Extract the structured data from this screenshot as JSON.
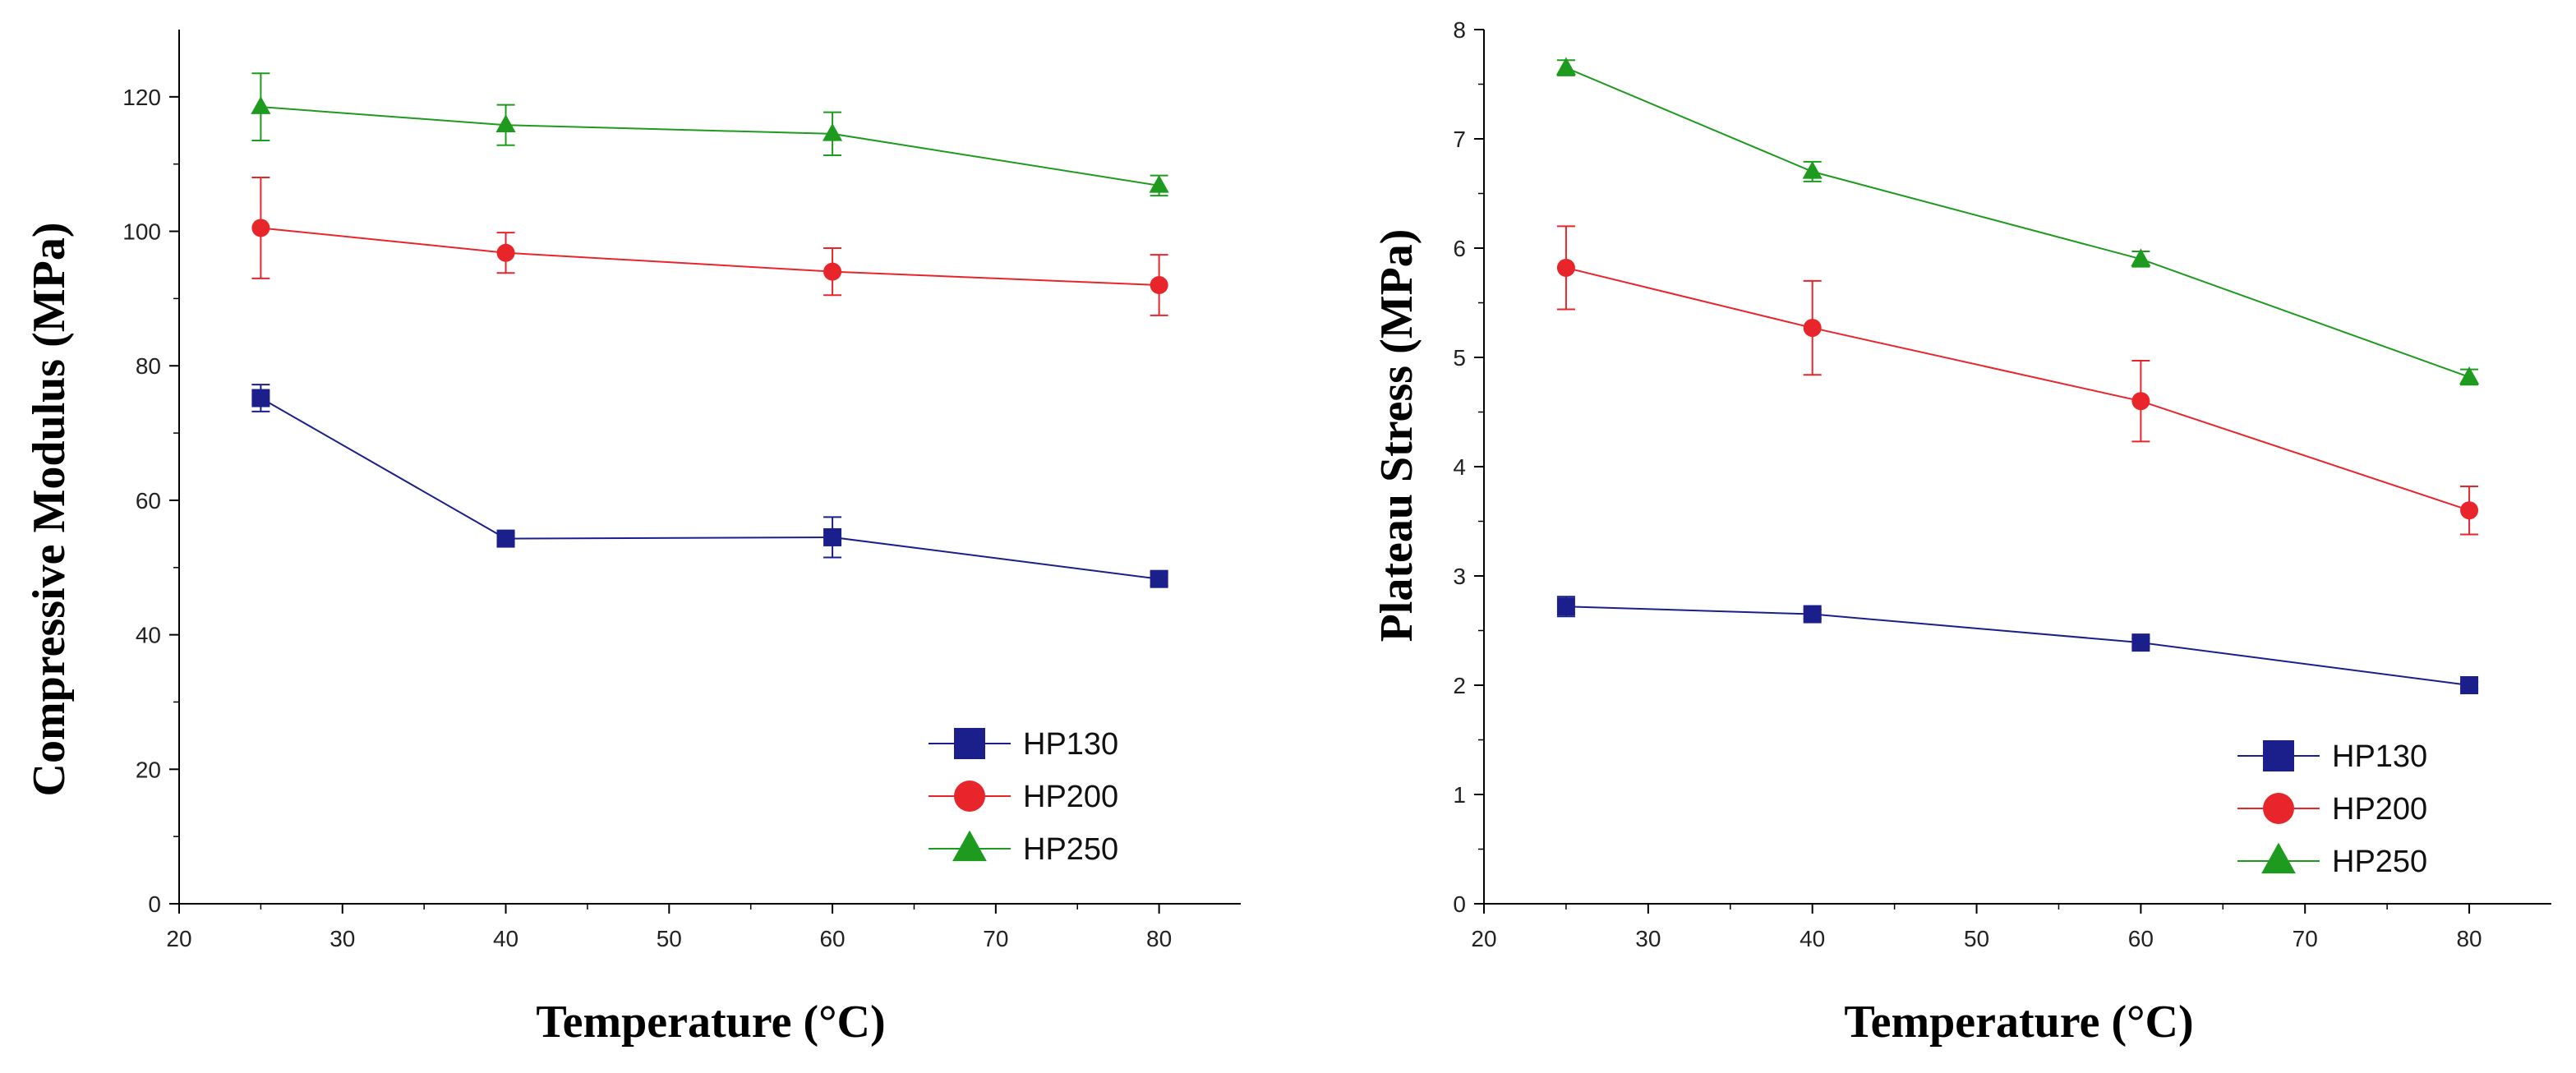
{
  "chart_data": [
    {
      "type": "line",
      "xlabel": "Temperature (°C)",
      "ylabel": "Compressive Modulus (MPa)",
      "xlim": [
        20,
        85
      ],
      "ylim": [
        0,
        130
      ],
      "xticks": [
        20,
        30,
        40,
        50,
        60,
        70,
        80
      ],
      "yticks": [
        0,
        20,
        40,
        60,
        80,
        100,
        120
      ],
      "x": [
        25,
        40,
        60,
        80
      ],
      "legend_position": "bottom-right",
      "series": [
        {
          "name": "HP130",
          "marker": "square",
          "color": "#1a1f8c",
          "values": [
            75.2,
            54.3,
            54.5,
            48.3
          ],
          "errors": [
            2.0,
            0.8,
            3.0,
            1.0
          ]
        },
        {
          "name": "HP200",
          "marker": "circle",
          "color": "#e8252b",
          "values": [
            100.5,
            96.8,
            94.0,
            92.0
          ],
          "errors": [
            7.5,
            3.0,
            3.5,
            4.5
          ]
        },
        {
          "name": "HP250",
          "marker": "triangle",
          "color": "#1e9b1e",
          "values": [
            118.5,
            115.8,
            114.5,
            106.8
          ],
          "errors": [
            5.0,
            3.0,
            3.2,
            1.5
          ]
        }
      ]
    },
    {
      "type": "line",
      "xlabel": "Temperature (°C)",
      "ylabel": "Plateau Stress (MPa)",
      "xlim": [
        20,
        85
      ],
      "ylim": [
        0,
        8
      ],
      "xticks": [
        20,
        30,
        40,
        50,
        60,
        70,
        80
      ],
      "yticks": [
        0,
        1,
        2,
        3,
        4,
        5,
        6,
        7,
        8
      ],
      "x": [
        25,
        40,
        60,
        80
      ],
      "legend_position": "bottom-right",
      "series": [
        {
          "name": "HP130",
          "marker": "square",
          "color": "#1a1f8c",
          "values": [
            2.72,
            2.65,
            2.39,
            2.0
          ],
          "errors": [
            0.09,
            0.04,
            0.04,
            0.03
          ]
        },
        {
          "name": "HP200",
          "marker": "circle",
          "color": "#e8252b",
          "values": [
            5.82,
            5.27,
            4.6,
            3.6
          ],
          "errors": [
            0.38,
            0.43,
            0.37,
            0.22
          ]
        },
        {
          "name": "HP250",
          "marker": "triangle",
          "color": "#1e9b1e",
          "values": [
            7.65,
            6.7,
            5.9,
            4.82
          ],
          "errors": [
            0.07,
            0.09,
            0.07,
            0.07
          ]
        }
      ]
    }
  ]
}
